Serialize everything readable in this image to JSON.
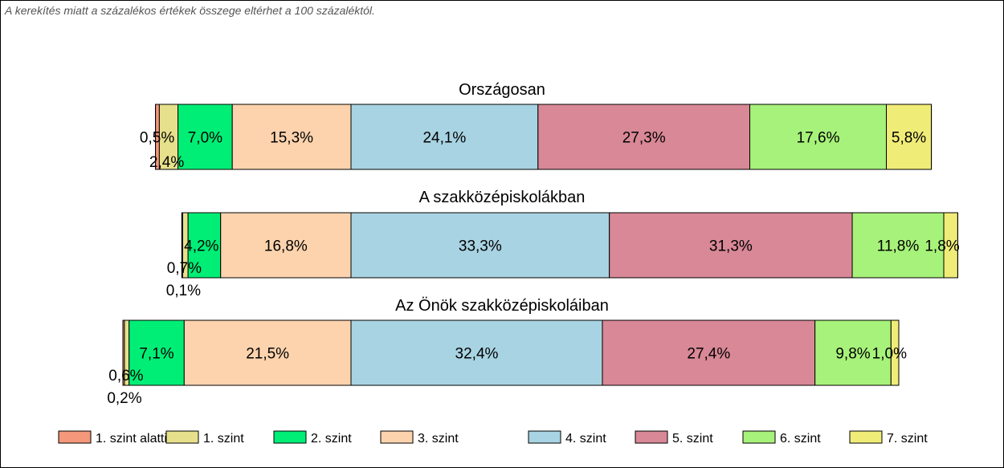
{
  "note": "A kerekítés miatt a  százalékos értékek összege eltérhet a 100 százaléktól.",
  "chart_data": {
    "type": "bar",
    "orientation": "horizontal-stacked",
    "series": [
      {
        "name": "1. szint alatti",
        "color": "#F4977A"
      },
      {
        "name": "1. szint",
        "color": "#E6E08C"
      },
      {
        "name": "2. szint",
        "color": "#00EE76"
      },
      {
        "name": "3. szint",
        "color": "#FDD3AE"
      },
      {
        "name": "4. szint",
        "color": "#A8D3E2"
      },
      {
        "name": "5. szint",
        "color": "#D88896"
      },
      {
        "name": "6. szint",
        "color": "#A7F27A"
      },
      {
        "name": "7. szint",
        "color": "#F0EC78"
      }
    ],
    "groups": [
      {
        "title": "Országosan",
        "values": [
          0.5,
          2.4,
          7.0,
          15.3,
          24.1,
          27.3,
          17.6,
          5.8
        ],
        "labels": [
          "0,5%",
          "2,4%",
          "7,0%",
          "15,3%",
          "24,1%",
          "27,3%",
          "17,6%",
          "5,8%"
        ]
      },
      {
        "title": "A szakközépiskolákban",
        "values": [
          0.1,
          0.7,
          4.2,
          16.8,
          33.3,
          31.3,
          11.8,
          1.8
        ],
        "labels": [
          "0,1%",
          "0,7%",
          "4,2%",
          "16,8%",
          "33,3%",
          "31,3%",
          "11,8%",
          "1,8%"
        ]
      },
      {
        "title": "Az Önök szakközépiskoláiban",
        "values": [
          0.2,
          0.6,
          7.1,
          21.5,
          32.4,
          27.4,
          9.8,
          1.0
        ],
        "labels": [
          "0,2%",
          "0,6%",
          "7,1%",
          "21,5%",
          "32,4%",
          "27,4%",
          "9,8%",
          "1,0%"
        ]
      }
    ],
    "legend_position": "bottom"
  }
}
